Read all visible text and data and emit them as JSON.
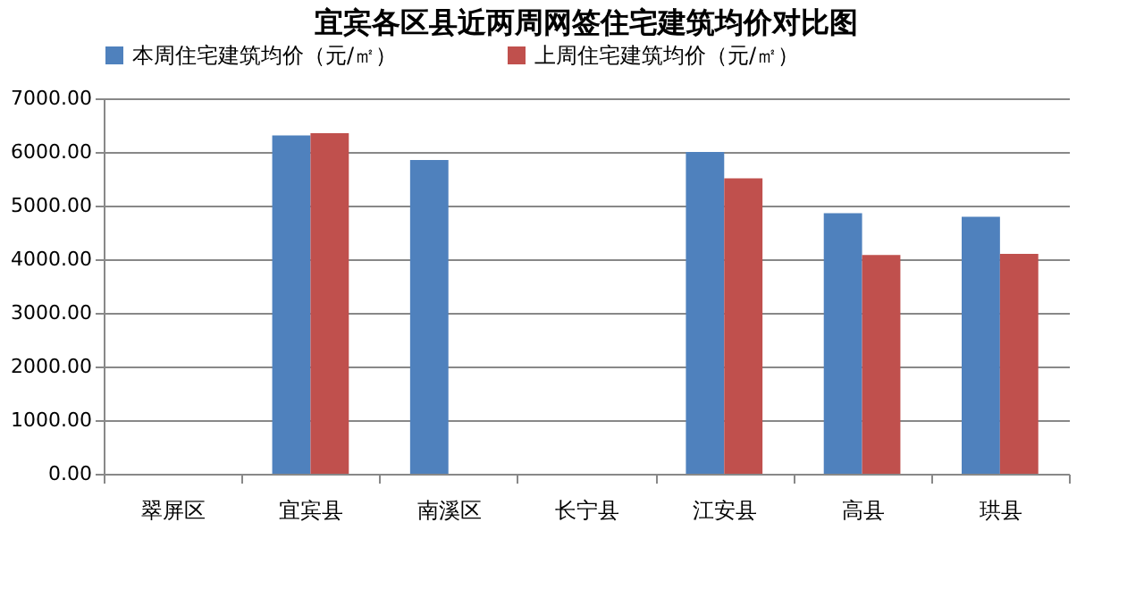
{
  "chart_data": {
    "type": "bar",
    "title": "宜宾各区县近两周网签住宅建筑均价对比图",
    "categories": [
      "翠屏区",
      "宜宾县",
      "南溪区",
      "长宁县",
      "江安县",
      "高县",
      "珙县"
    ],
    "series": [
      {
        "name": "本周住宅建筑均价（元/㎡）",
        "color": "#4f81bd",
        "values": [
          null,
          6310,
          5850,
          null,
          6000,
          4860,
          4790
        ]
      },
      {
        "name": "上周住宅建筑均价（元/㎡）",
        "color": "#c0504d",
        "values": [
          null,
          6350,
          null,
          null,
          5510,
          4080,
          4100
        ]
      }
    ],
    "ylim": [
      0,
      7000
    ],
    "yticks": [
      {
        "value": 0,
        "label": "0.00"
      },
      {
        "value": 1000,
        "label": "1000.00"
      },
      {
        "value": 2000,
        "label": "2000.00"
      },
      {
        "value": 3000,
        "label": "3000.00"
      },
      {
        "value": 4000,
        "label": "4000.00"
      },
      {
        "value": 5000,
        "label": "5000.00"
      },
      {
        "value": 6000,
        "label": "6000.00"
      },
      {
        "value": 7000,
        "label": "7000.00"
      }
    ],
    "grid": "y",
    "legend": "top"
  }
}
